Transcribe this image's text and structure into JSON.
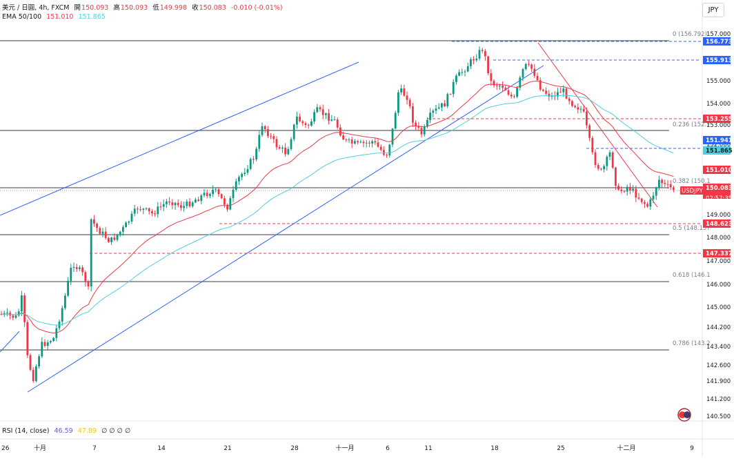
{
  "header": {
    "symbol_line": "美元 / 日圓, 4h, FXCM",
    "open_label": "開",
    "open_value": "150.093",
    "high_label": "高",
    "high_value": "150.093",
    "low_label": "低",
    "low_value": "149.998",
    "close_label": "收",
    "close_value": "150.083",
    "change_value": "-0.010 (-0.01%)",
    "ema_label": "EMA 50/100",
    "ema50_value": "151.010",
    "ema100_value": "151.865"
  },
  "currency_button": "JPY",
  "rsi": {
    "label": "RSI (14, close)",
    "value1": "46.59",
    "value2": "47.89",
    "zeros": "∅ ∅ ∅ ∅"
  },
  "colors": {
    "ema50": "#f23645",
    "ema100": "#4dd0e1",
    "up": "#089981",
    "down": "#f23645",
    "channel": "#2962ff",
    "blue_level": "#2962ff",
    "red_level": "#f23645",
    "fib_line": "#787b86"
  },
  "chart_data": {
    "type": "candlestick",
    "symbol": "USDJPY",
    "timeframe": "4h",
    "yaxis_ticks": [
      "157.000",
      "156.300",
      "155.600",
      "155.000",
      "154.000",
      "153.000",
      "152.000",
      "151.000",
      "150.000",
      "149.000",
      "148.000",
      "147.000",
      "146.000",
      "145.000",
      "144.200",
      "143.400",
      "142.600",
      "141.900",
      "141.200",
      "140.500"
    ],
    "xaxis_ticks": [
      "26",
      "十月",
      "7",
      "14",
      "21",
      "28",
      "十一月",
      "6",
      "11",
      "18",
      "25",
      "十二月",
      "9"
    ],
    "fib_levels": [
      {
        "label": "0 (156.792)",
        "price": 156.792
      },
      {
        "label": "0.236 (152.7",
        "price": 152.74
      },
      {
        "label": "0.382 (150.1",
        "price": 150.2
      },
      {
        "label": "0.5 (148.157",
        "price": 148.157
      },
      {
        "label": "0.618 (146.1",
        "price": 146.1
      },
      {
        "label": "0.786 (143.2",
        "price": 143.2
      }
    ],
    "price_labels": [
      {
        "text": "156.773",
        "style": "blue",
        "price": 156.773
      },
      {
        "text": "155.913",
        "style": "blue",
        "price": 155.913
      },
      {
        "text": "153.255",
        "style": "red",
        "price": 153.255
      },
      {
        "text": "151.941",
        "style": "blue",
        "price": 151.941
      },
      {
        "text": "151.865",
        "style": "cyan",
        "price": 151.865
      },
      {
        "text": "151.010",
        "style": "red",
        "price": 151.01
      },
      {
        "text": "USDJPY",
        "style": "red",
        "price": 150.083
      },
      {
        "text": "150.083",
        "style": "red",
        "price": 150.083
      },
      {
        "text": "02:57:35",
        "style": "red-sub",
        "price": 150.083
      },
      {
        "text": "148.623",
        "style": "red",
        "price": 148.623
      },
      {
        "text": "147.337",
        "style": "red",
        "price": 147.337
      }
    ],
    "current_price": 150.083,
    "ema50_last": 151.01,
    "ema100_last": 151.865
  }
}
